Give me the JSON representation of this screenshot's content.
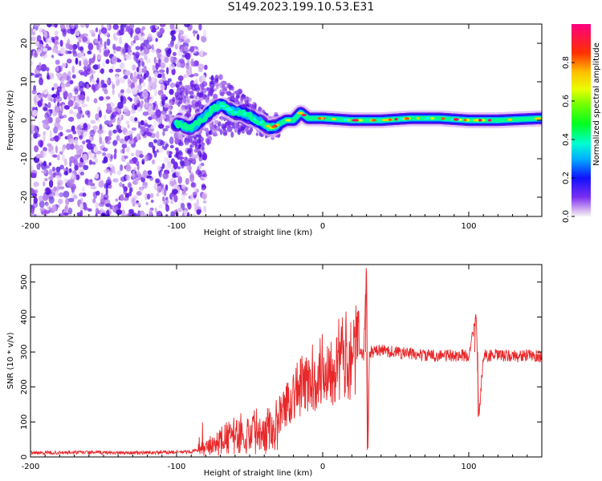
{
  "title": "S149.2023.199.10.53.E31",
  "chart_data": [
    {
      "type": "heatmap",
      "xlabel": "Height of straight line (km)",
      "ylabel": "Frequency (Hz)",
      "xlim": [
        -200,
        150
      ],
      "ylim": [
        -25,
        25
      ],
      "xticks": [
        -200,
        -100,
        0,
        100
      ],
      "yticks": [
        -20,
        -10,
        0,
        10,
        20
      ],
      "colorbar": {
        "label": "Normalized spectral amplitude",
        "range": [
          0.0,
          1.0
        ],
        "ticks": [
          0.0,
          0.2,
          0.4,
          0.6,
          0.8
        ]
      },
      "noise_region_x": [
        -200,
        -80
      ],
      "ridge": {
        "x": [
          -100,
          -90,
          -80,
          -75,
          -70,
          -65,
          -60,
          -55,
          -50,
          -45,
          -40,
          -35,
          -30,
          -25,
          -20,
          -15,
          -10,
          -5,
          0,
          20,
          40,
          60,
          80,
          100,
          120,
          150
        ],
        "freq": [
          -1,
          -2,
          1,
          3,
          4,
          3,
          2,
          2,
          1,
          0,
          -1,
          -2,
          -1,
          0,
          0,
          2,
          0.5,
          0.5,
          0.5,
          0,
          0,
          0.5,
          0.5,
          0,
          0,
          0.5
        ]
      }
    },
    {
      "type": "line",
      "xlabel": "Height of straight line (km)",
      "ylabel": "SNR (10 * v/v)",
      "xlim": [
        -200,
        150
      ],
      "ylim": [
        0,
        550
      ],
      "xticks": [
        -200,
        -100,
        0,
        100
      ],
      "yticks": [
        0,
        100,
        200,
        300,
        400,
        500
      ],
      "color": "#e8282a",
      "series": [
        {
          "name": "SNR",
          "x": [
            -200,
            -180,
            -160,
            -140,
            -120,
            -100,
            -90,
            -85,
            -80,
            -75,
            -70,
            -65,
            -60,
            -55,
            -50,
            -45,
            -40,
            -35,
            -30,
            -25,
            -20,
            -15,
            -10,
            -5,
            0,
            5,
            10,
            15,
            20,
            25,
            28,
            30,
            31,
            32,
            35,
            40,
            50,
            60,
            70,
            80,
            90,
            100,
            105,
            107,
            110,
            120,
            130,
            140,
            150
          ],
          "y": [
            12,
            12,
            13,
            12,
            12,
            14,
            15,
            20,
            25,
            30,
            45,
            55,
            60,
            70,
            65,
            80,
            75,
            90,
            120,
            150,
            180,
            200,
            210,
            230,
            250,
            260,
            275,
            285,
            300,
            305,
            290,
            540,
            20,
            300,
            300,
            305,
            300,
            295,
            290,
            290,
            290,
            290,
            400,
            115,
            290,
            290,
            288,
            290,
            288
          ]
        }
      ]
    }
  ]
}
